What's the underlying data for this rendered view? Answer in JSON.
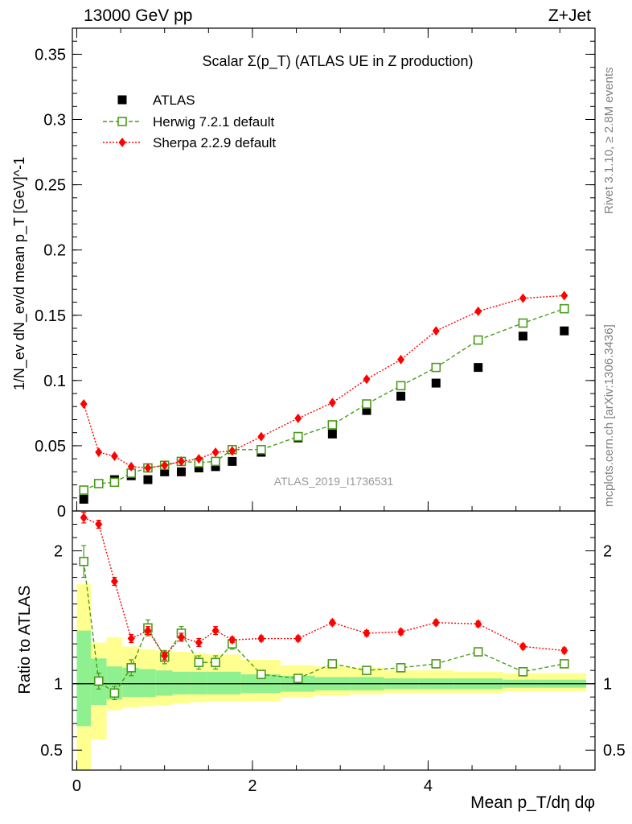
{
  "header": {
    "left": "13000 GeV pp",
    "right": "Z+Jet"
  },
  "side_labels": {
    "rivet": "Rivet 3.1.10, ≥ 2.8M events",
    "mcplots": "mcplots.cern.ch [arXiv:1306.3436]"
  },
  "watermark": "ATLAS_2019_I1736531",
  "colors": {
    "data": "#000000",
    "herwig": "#4a9a1a",
    "sherpa": "#ff0000",
    "band_inner": "#8ff08f",
    "band_outer": "#ffff8f"
  },
  "chart_data": [
    {
      "type": "scatter",
      "title": "Scalar Σ(p_T) (ATLAS UE in Z production)",
      "ylabel": "1/N_ev dN_ev/d mean p_T [GeV]^-1",
      "xlim": [
        -0.05,
        5.9
      ],
      "ylim": [
        0,
        0.37
      ],
      "yticks": [
        0,
        0.05,
        0.1,
        0.15,
        0.2,
        0.25,
        0.3,
        0.35
      ],
      "ytick_labels": [
        "0",
        "0.05",
        "0.1",
        "0.15",
        "0.2",
        "0.25",
        "0.3",
        "0.35"
      ],
      "x": [
        0.08,
        0.25,
        0.43,
        0.62,
        0.81,
        1.0,
        1.19,
        1.39,
        1.58,
        1.77,
        2.1,
        2.52,
        2.91,
        3.3,
        3.69,
        4.09,
        4.57,
        5.08,
        5.55
      ],
      "series": [
        {
          "name": "ATLAS",
          "style": "data",
          "values": [
            0.009,
            0.021,
            0.024,
            0.027,
            0.024,
            0.03,
            0.03,
            0.033,
            0.034,
            0.038,
            0.045,
            0.056,
            0.059,
            0.077,
            0.088,
            0.098,
            0.11,
            0.134,
            0.138
          ]
        },
        {
          "name": "Herwig 7.2.1 default",
          "style": "herwig",
          "values": [
            0.016,
            0.021,
            0.022,
            0.029,
            0.033,
            0.035,
            0.038,
            0.037,
            0.038,
            0.047,
            0.047,
            0.057,
            0.066,
            0.082,
            0.096,
            0.11,
            0.131,
            0.144,
            0.155
          ]
        },
        {
          "name": "Sherpa 2.2.9 default",
          "style": "sherpa",
          "values": [
            0.082,
            0.045,
            0.042,
            0.034,
            0.033,
            0.035,
            0.038,
            0.04,
            0.045,
            0.046,
            0.057,
            0.071,
            0.083,
            0.101,
            0.116,
            0.138,
            0.153,
            0.163,
            0.165
          ]
        }
      ],
      "legend": [
        "ATLAS",
        "Herwig 7.2.1 default",
        "Sherpa 2.2.9 default"
      ],
      "legend_position": "top-left"
    },
    {
      "type": "line",
      "ylabel": "Ratio to ATLAS",
      "xlabel": "Mean p_T/dη dφ",
      "xlim": [
        -0.05,
        5.9
      ],
      "ylim": [
        0.35,
        2.3
      ],
      "xticks": [
        0,
        2,
        4
      ],
      "xtick_labels": [
        "0",
        "2",
        "4"
      ],
      "yticks": [
        0.5,
        1,
        2
      ],
      "ytick_labels": [
        "0.5",
        "1",
        "2"
      ],
      "reference_line": 1,
      "x": [
        0.08,
        0.25,
        0.43,
        0.62,
        0.81,
        1.0,
        1.19,
        1.39,
        1.58,
        1.77,
        2.1,
        2.52,
        2.91,
        3.3,
        3.69,
        4.09,
        4.57,
        5.08,
        5.55
      ],
      "series": [
        {
          "name": "Herwig 7.2.1 default",
          "style": "herwig",
          "values": [
            1.92,
            1.02,
            0.93,
            1.12,
            1.42,
            1.2,
            1.38,
            1.16,
            1.16,
            1.3,
            1.07,
            1.04,
            1.15,
            1.1,
            1.12,
            1.15,
            1.24,
            1.09,
            1.15
          ],
          "errors": [
            0.12,
            0.06,
            0.05,
            0.06,
            0.06,
            0.05,
            0.05,
            0.05,
            0.05,
            0.04,
            0.02,
            0.02,
            0.02,
            0.02,
            0.02,
            0.02,
            0.02,
            0.02,
            0.02
          ]
        },
        {
          "name": "Sherpa 2.2.9 default",
          "style": "sherpa",
          "values": [
            2.25,
            2.2,
            1.77,
            1.34,
            1.4,
            1.21,
            1.35,
            1.31,
            1.4,
            1.33,
            1.34,
            1.34,
            1.46,
            1.38,
            1.39,
            1.46,
            1.45,
            1.28,
            1.25
          ],
          "errors": [
            0.04,
            0.03,
            0.03,
            0.03,
            0.03,
            0.03,
            0.03,
            0.03,
            0.03,
            0.02,
            0.02,
            0.02,
            0.02,
            0.02,
            0.02,
            0.02,
            0.02,
            0.02,
            0.02
          ]
        }
      ],
      "uncertainty_bands": {
        "bins": [
          0.0,
          0.16,
          0.34,
          0.52,
          0.71,
          0.9,
          1.09,
          1.29,
          1.48,
          1.87,
          2.32,
          2.71,
          3.11,
          3.5,
          3.89,
          4.29,
          4.85,
          5.3,
          5.8
        ],
        "inner_low": [
          0.68,
          0.84,
          0.88,
          0.9,
          0.9,
          0.91,
          0.92,
          0.92,
          0.92,
          0.93,
          0.94,
          0.95,
          0.95,
          0.96,
          0.96,
          0.96,
          0.97,
          0.97
        ],
        "inner_high": [
          1.4,
          1.19,
          1.13,
          1.12,
          1.11,
          1.1,
          1.09,
          1.09,
          1.09,
          1.07,
          1.06,
          1.05,
          1.05,
          1.04,
          1.04,
          1.04,
          1.03,
          1.03
        ],
        "outer_low": [
          0.3,
          0.58,
          0.8,
          0.82,
          0.83,
          0.84,
          0.85,
          0.86,
          0.87,
          0.87,
          0.9,
          0.91,
          0.92,
          0.93,
          0.93,
          0.93,
          0.94,
          0.94
        ],
        "outer_high": [
          1.75,
          1.31,
          1.35,
          1.28,
          1.26,
          1.25,
          1.24,
          1.23,
          1.22,
          1.18,
          1.14,
          1.13,
          1.12,
          1.1,
          1.1,
          1.09,
          1.08,
          1.08
        ]
      }
    }
  ]
}
